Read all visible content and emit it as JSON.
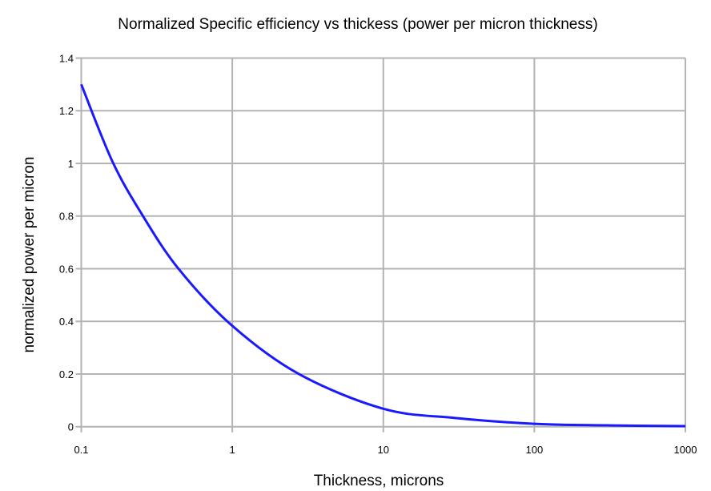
{
  "chart_data": {
    "type": "line",
    "title": "Normalized Specific efficiency vs thickess (power per micron thickness)",
    "xlabel": "Thickness, microns",
    "ylabel": "normalized power per micron",
    "xscale": "log",
    "xlim": [
      0.1,
      1000
    ],
    "ylim": [
      0,
      1.4
    ],
    "grid": true,
    "x_ticks": [
      "0.1",
      "1",
      "10",
      "100",
      "1000"
    ],
    "y_ticks": [
      "0",
      "0.2",
      "0.4",
      "0.6",
      "0.8",
      "1",
      "1.2",
      "1.4"
    ],
    "series": [
      {
        "name": "normalized power per micron",
        "color": "#1a1aff",
        "x": [
          0.1,
          0.16,
          0.25,
          0.44,
          1,
          2.76,
          10,
          30,
          100,
          300,
          1000
        ],
        "y": [
          1.3,
          1.01,
          0.81,
          0.6,
          0.383,
          0.2,
          0.068,
          0.033,
          0.011,
          0.005,
          0.002
        ]
      }
    ]
  }
}
